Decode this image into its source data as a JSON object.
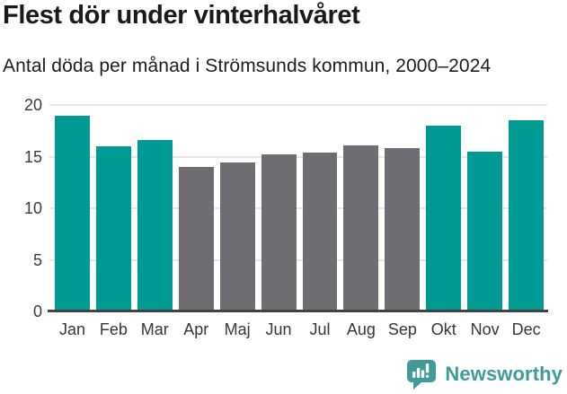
{
  "header": {
    "title": "Flest dör under vinterhalvåret",
    "subtitle": "Antal döda per månad i Strömsunds kommun, 2000–2024"
  },
  "chart_data": {
    "type": "bar",
    "title": "Flest dör under vinterhalvåret",
    "subtitle": "Antal döda per månad i Strömsunds kommun, 2000–2024",
    "categories": [
      "Jan",
      "Feb",
      "Mar",
      "Apr",
      "Maj",
      "Jun",
      "Jul",
      "Aug",
      "Sep",
      "Okt",
      "Nov",
      "Dec"
    ],
    "values": [
      19.0,
      16.0,
      16.6,
      14.0,
      14.4,
      15.2,
      15.4,
      16.1,
      15.8,
      18.0,
      15.5,
      18.5
    ],
    "bar_groups": [
      "winter",
      "winter",
      "winter",
      "summer",
      "summer",
      "summer",
      "summer",
      "summer",
      "summer",
      "winter",
      "winter",
      "winter"
    ],
    "colors": {
      "winter": "#009a94",
      "summer": "#6e6d72"
    },
    "xlabel": "",
    "ylabel": "",
    "ylim": [
      0,
      20
    ],
    "yticks": [
      0,
      5,
      10,
      15,
      20
    ],
    "grid": "horizontal-only",
    "legend": "none"
  },
  "footer": {
    "brand": "Newsworthy"
  },
  "icons": {
    "logo": "newsworthy-speech-bubble-bar-chart-icon"
  },
  "palette": {
    "highlight_teal": "#009a94",
    "neutral_gray": "#6e6d72",
    "brand_teal": "#3f9c9a",
    "gridline": "#e6e6e6",
    "axis_line": "#424242",
    "text_dark": "#1a1a1a"
  }
}
